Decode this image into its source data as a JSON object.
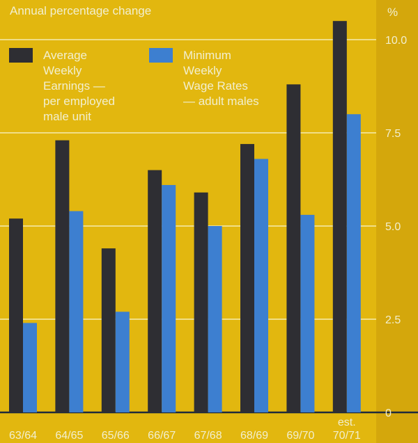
{
  "chart_data": {
    "type": "bar",
    "title": "Annual percentage change",
    "unit": "%",
    "categories": [
      "63/64",
      "64/65",
      "65/66",
      "66/67",
      "67/68",
      "68/69",
      "69/70",
      "70/71"
    ],
    "category_notes": {
      "70/71": "est."
    },
    "series": [
      {
        "name": "Average Weekly Earnings — per employed male unit",
        "legend_lines": [
          "Average",
          "Weekly",
          "Earnings —",
          "per employed",
          "male unit"
        ],
        "color": "#2e2e33",
        "values": [
          5.2,
          7.3,
          4.4,
          6.5,
          5.9,
          7.2,
          8.8,
          10.5
        ]
      },
      {
        "name": "Minimum Weekly Wage Rates — adult males",
        "legend_lines": [
          "Minimum",
          "Weekly",
          "Wage Rates",
          "— adult males"
        ],
        "color": "#3d7fd0",
        "values": [
          2.4,
          5.4,
          2.7,
          6.1,
          5.0,
          6.8,
          5.3,
          8.0
        ]
      }
    ],
    "yticks": [
      "0",
      "2.5",
      "5.0",
      "7.5",
      "10.0"
    ],
    "ylim": [
      0,
      10.5
    ],
    "grid": true,
    "legend_position": "top-left",
    "colors": {
      "background": "#e2b70f",
      "panel": "#d4a70c",
      "text": "#f2efcf",
      "axis": "#1e2a3c",
      "grid": "#f4ecb0"
    }
  }
}
